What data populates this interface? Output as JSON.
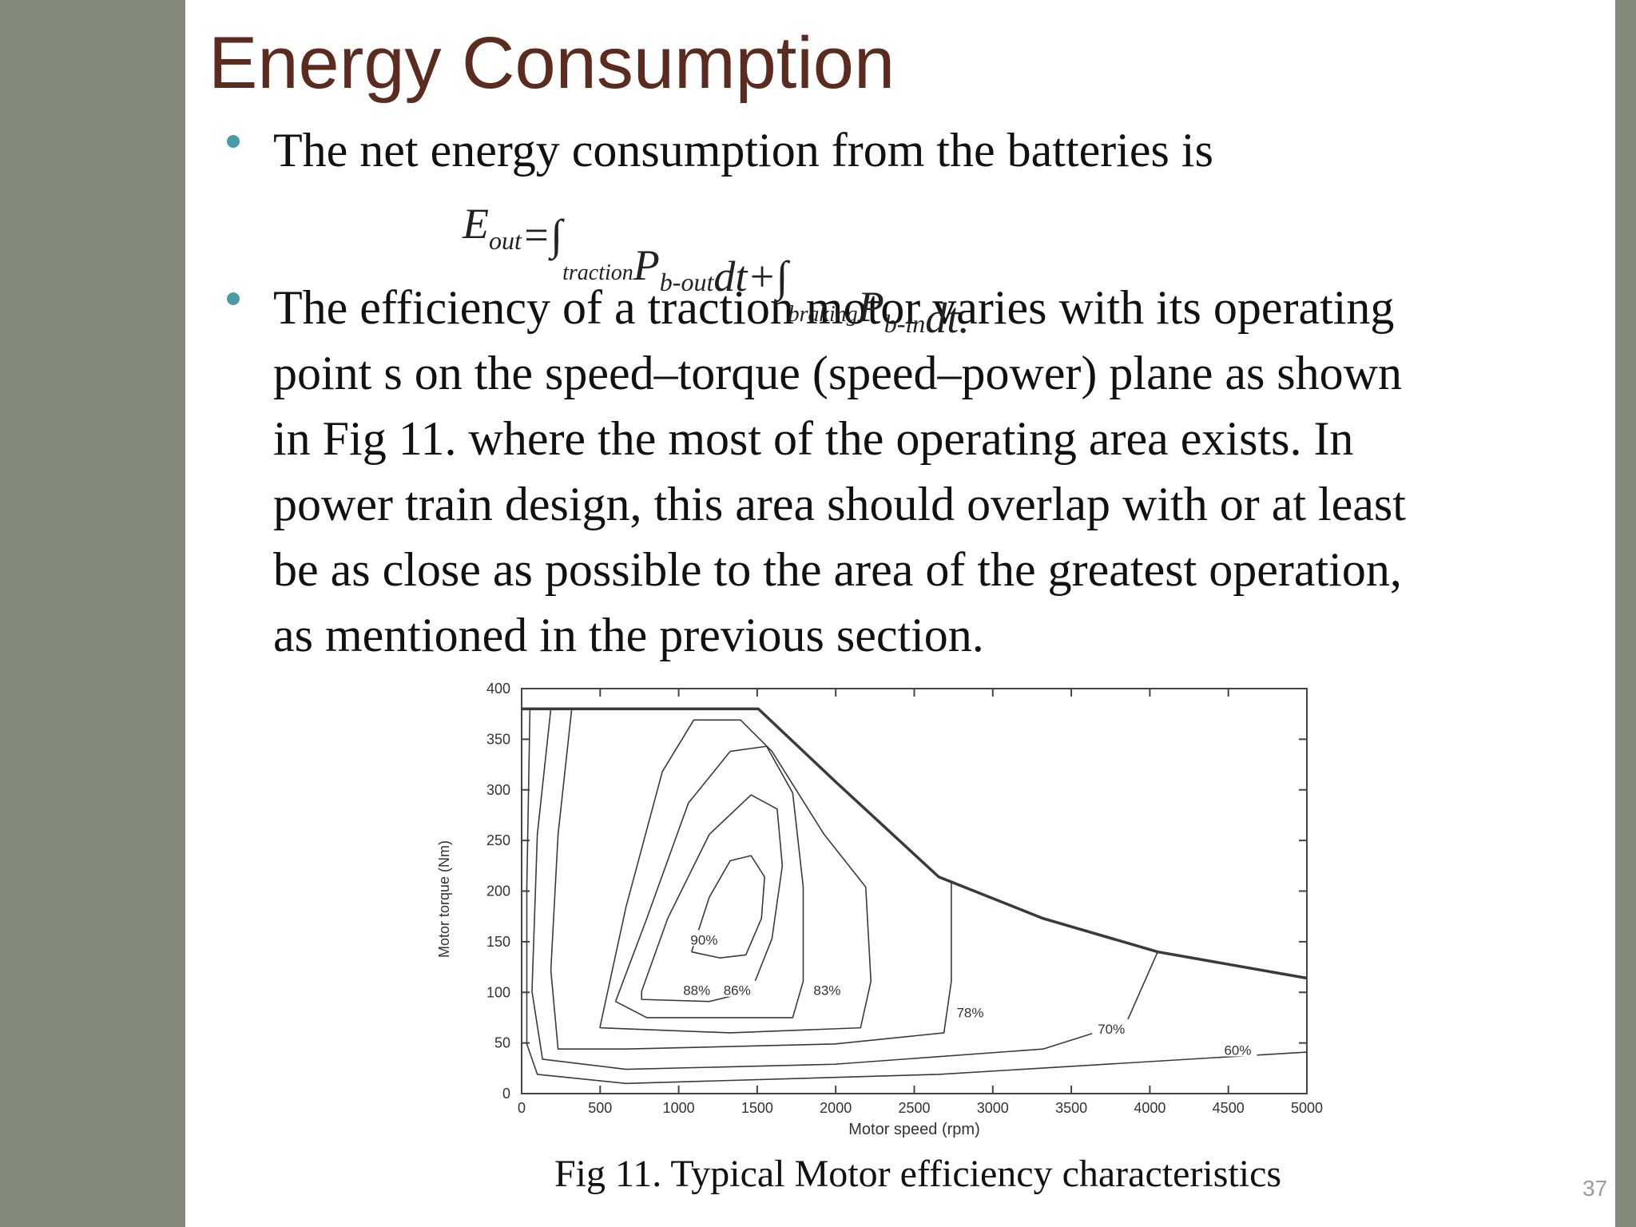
{
  "header": {
    "title": "Energy Consumption"
  },
  "bullets": [
    {
      "lines": [
        "The net energy consumption from the batteries is"
      ]
    },
    {
      "lines": [
        "The efficiency of a traction motor varies with its operating",
        "point s on the speed–torque (speed–power) plane as shown",
        "in Fig 11. where the most of the operating area exists. In",
        "power train design, this area should overlap with or at least",
        "be as close as possible to the area of the greatest operation,",
        "as mentioned in the previous section."
      ]
    }
  ],
  "equation": {
    "terms": [
      {
        "main": "E",
        "sub": "out"
      },
      {
        "main": "=∫",
        "sub": "traction"
      },
      {
        "main": "P",
        "sub": "b-out"
      },
      {
        "main": "dt+∫",
        "sub": "braking"
      },
      {
        "main": "P",
        "sub": "b-in"
      },
      {
        "main": "dt."
      }
    ]
  },
  "chart_data": {
    "type": "line",
    "xlabel": "Motor speed (rpm)",
    "ylabel": "Motor torque (Nm)",
    "xlim": [
      0,
      5000
    ],
    "ylim": [
      0,
      400
    ],
    "xticks": [
      0,
      500,
      1000,
      1500,
      2000,
      2500,
      3000,
      3500,
      4000,
      4500,
      5000
    ],
    "yticks": [
      0,
      50,
      100,
      150,
      200,
      250,
      300,
      350,
      400
    ],
    "color": "#3a3a3a",
    "series": [
      {
        "x": [
          0,
          1507,
          1992,
          2656,
          3320,
          4050,
          5000
        ],
        "values": [
          380,
          380,
          309,
          214,
          173,
          140,
          114
        ]
      },
      {
        "name": "90%",
        "x": [
          1082,
          1195,
          1328,
          1461,
          1547,
          1527,
          1428,
          1262,
          1082
        ],
        "values": [
          140,
          194,
          230,
          235,
          214,
          173,
          137,
          134,
          140
        ]
      },
      {
        "name": "88%",
        "x": [
          764,
          930,
          1195,
          1461,
          1627,
          1660,
          1594,
          1461,
          1195,
          764,
          764
        ],
        "values": [
          101,
          173,
          256,
          295,
          281,
          225,
          153,
          101,
          91,
          93,
          101
        ]
      },
      {
        "name": "86%",
        "x": [
          598,
          797,
          1062,
          1328,
          1560,
          1726,
          1793,
          1793,
          1726,
          797,
          598
        ],
        "values": [
          91,
          173,
          287,
          338,
          343,
          297,
          204,
          111,
          75,
          75,
          91
        ]
      },
      {
        "name": "83%",
        "x": [
          498,
          664,
          896,
          1096,
          1394,
          1594,
          1926,
          2191,
          2224,
          2158,
          1328,
          498
        ],
        "values": [
          65,
          184,
          318,
          369,
          369,
          338,
          256,
          204,
          111,
          65,
          60,
          65
        ]
      },
      {
        "name": "78%",
        "x": [
          319,
          232,
          186,
          232,
          664,
          1992,
          2689,
          2736,
          2736
        ],
        "values": [
          380,
          256,
          122,
          44,
          44,
          49,
          60,
          111,
          209
        ]
      },
      {
        "name": "70%",
        "x": [
          186,
          100,
          66,
          133,
          664,
          1992,
          3320,
          3851,
          4050
        ],
        "values": [
          380,
          256,
          101,
          34,
          24,
          29,
          44,
          70,
          140
        ]
      },
      {
        "name": "60%",
        "x": [
          53,
          33,
          33,
          100,
          664,
          2656,
          5000
        ],
        "values": [
          380,
          204,
          49,
          19,
          10,
          19,
          41
        ]
      }
    ]
  },
  "caption": "Fig 11. Typical Motor efficiency characteristics",
  "page_number": "37"
}
